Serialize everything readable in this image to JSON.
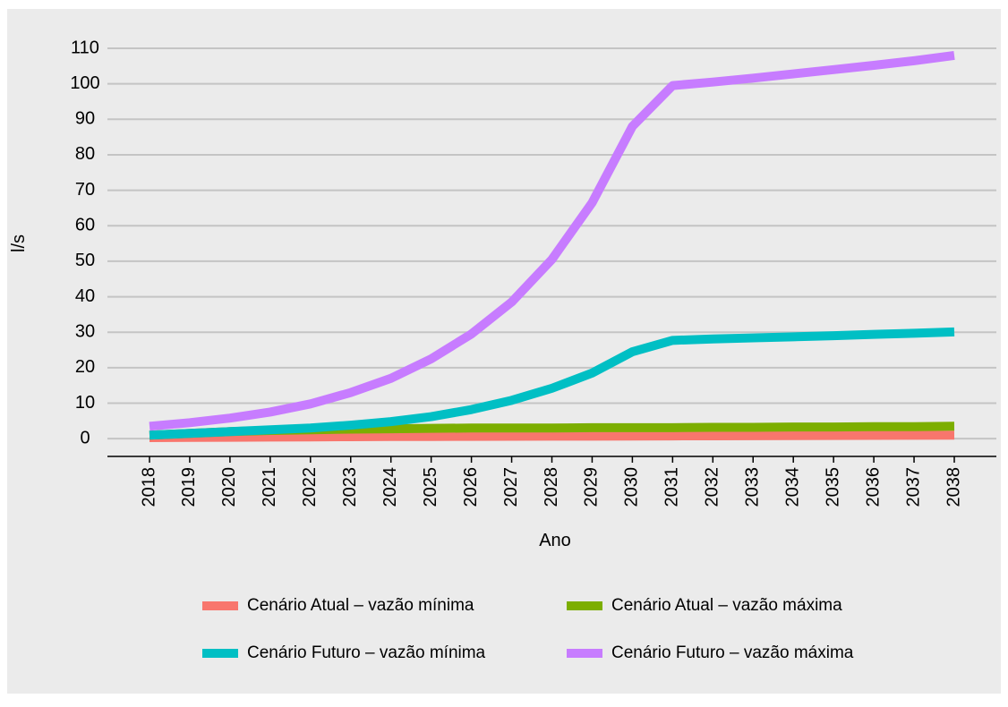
{
  "chart_data": {
    "type": "line",
    "x_label": "Ano",
    "y_label": "l/s",
    "categories": [
      "2018",
      "2019",
      "2020",
      "2021",
      "2022",
      "2023",
      "2024",
      "2025",
      "2026",
      "2027",
      "2028",
      "2029",
      "2030",
      "2031",
      "2032",
      "2033",
      "2034",
      "2035",
      "2036",
      "2037",
      "2038"
    ],
    "series": [
      {
        "name": "Cenário Atual – vazão mínima",
        "color": "#f8766d",
        "values": [
          0.3,
          0.35,
          0.4,
          0.45,
          0.5,
          0.55,
          0.6,
          0.62,
          0.65,
          0.68,
          0.7,
          0.72,
          0.75,
          0.78,
          0.8,
          0.83,
          0.86,
          0.9,
          0.93,
          0.96,
          1
        ]
      },
      {
        "name": "Cenário Atual – vazão máxima",
        "color": "#7cae00",
        "values": [
          1,
          1.5,
          2,
          2.3,
          2.5,
          2.7,
          2.8,
          2.9,
          3,
          3,
          3,
          3.1,
          3.1,
          3.1,
          3.2,
          3.2,
          3.3,
          3.3,
          3.4,
          3.4,
          3.5
        ]
      },
      {
        "name": "Cenário Futuro – vazão mínima",
        "color": "#00bfc4",
        "values": [
          1,
          1.5,
          2,
          2.5,
          3,
          3.8,
          4.8,
          6.2,
          8.2,
          10.8,
          14.2,
          18.5,
          24.5,
          27.7,
          28.1,
          28.4,
          28.7,
          29,
          29.4,
          29.7,
          30.1
        ]
      },
      {
        "name": "Cenário Futuro – vazão máxima",
        "color": "#c77cff",
        "values": [
          3.5,
          4.5,
          5.8,
          7.5,
          9.8,
          13,
          17,
          22.5,
          29.5,
          38.5,
          50.5,
          66.5,
          88,
          99.5,
          100.5,
          101.6,
          102.8,
          104,
          105.2,
          106.5,
          108
        ]
      }
    ],
    "ylim": [
      -5,
      110
    ],
    "yticks": [
      0,
      10,
      20,
      30,
      40,
      50,
      60,
      70,
      80,
      90,
      100,
      110
    ],
    "grid": true,
    "legend": "bottom"
  }
}
